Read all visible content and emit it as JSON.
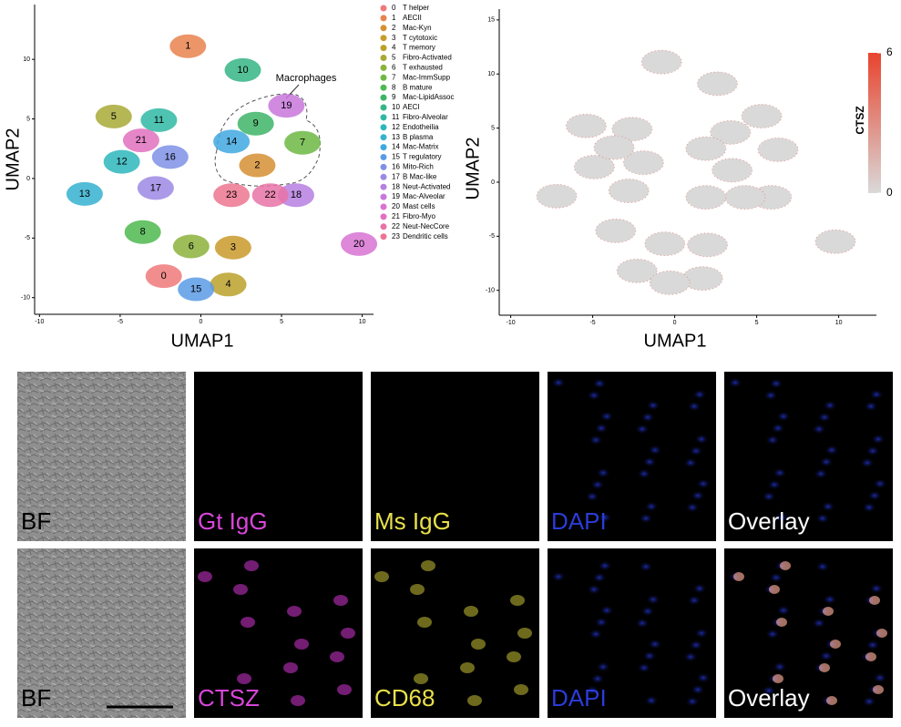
{
  "chart_data": [
    {
      "type": "scatter",
      "xlabel": "UMAP1",
      "ylabel": "UMAP2",
      "xlim": [
        -10.3,
        10.7
      ],
      "ylim": [
        -11.4,
        14.6
      ],
      "xticks": [
        -10,
        -5,
        0,
        5,
        10
      ],
      "yticks": [
        -10,
        -5,
        0,
        5,
        10
      ],
      "annotation": "Macrophages",
      "series": [
        {
          "label": "0",
          "name": "T helper",
          "color": "#F0797A",
          "x": [
            -2.3
          ],
          "values": [
            -8.2
          ]
        },
        {
          "label": "1",
          "name": "AECII",
          "color": "#E8834F",
          "x": [
            -0.8
          ],
          "values": [
            11.1
          ]
        },
        {
          "label": "2",
          "name": "Mac-Kyn",
          "color": "#D58F32",
          "x": [
            3.5
          ],
          "values": [
            1.1
          ]
        },
        {
          "label": "3",
          "name": "T cytotoxic",
          "color": "#C99A2C",
          "x": [
            2.0
          ],
          "values": [
            -5.8
          ]
        },
        {
          "label": "4",
          "name": "T memory",
          "color": "#BBA12B",
          "x": [
            1.7
          ],
          "values": [
            -8.9
          ]
        },
        {
          "label": "5",
          "name": "Fibro-Activated",
          "color": "#A8A936",
          "x": [
            -5.4
          ],
          "values": [
            5.2
          ]
        },
        {
          "label": "6",
          "name": "T exhausted",
          "color": "#8BB23B",
          "x": [
            -0.6
          ],
          "values": [
            -5.7
          ]
        },
        {
          "label": "7",
          "name": "Mac-ImmSupp",
          "color": "#6DB843",
          "x": [
            6.3
          ],
          "values": [
            3.0
          ]
        },
        {
          "label": "8",
          "name": "B mature",
          "color": "#4DB94F",
          "x": [
            -3.6
          ],
          "values": [
            -4.5
          ]
        },
        {
          "label": "9",
          "name": "Mac-LipidAssoc",
          "color": "#3EB467",
          "x": [
            3.4
          ],
          "values": [
            4.6
          ]
        },
        {
          "label": "10",
          "name": "AECI",
          "color": "#35B585",
          "x": [
            2.6
          ],
          "values": [
            9.1
          ]
        },
        {
          "label": "11",
          "name": "Fibro-Alveolar",
          "color": "#2FB8A3",
          "x": [
            -2.6
          ],
          "values": [
            4.9
          ]
        },
        {
          "label": "12",
          "name": "Endotheilia",
          "color": "#2DB6BC",
          "x": [
            -4.9
          ],
          "values": [
            1.4
          ]
        },
        {
          "label": "13",
          "name": "B plasma",
          "color": "#35B2D0",
          "x": [
            -7.2
          ],
          "values": [
            -1.3
          ]
        },
        {
          "label": "14",
          "name": "Mac-Matrix",
          "color": "#3FA8E0",
          "x": [
            1.9
          ],
          "values": [
            3.1
          ]
        },
        {
          "label": "15",
          "name": "T regulatory",
          "color": "#5B9BE6",
          "x": [
            -0.3
          ],
          "values": [
            -9.3
          ]
        },
        {
          "label": "16",
          "name": "Mito-Rich",
          "color": "#7F91E6",
          "x": [
            -1.9
          ],
          "values": [
            1.8
          ]
        },
        {
          "label": "17",
          "name": "B Mac-like",
          "color": "#9C88E4",
          "x": [
            -2.8
          ],
          "values": [
            -0.8
          ]
        },
        {
          "label": "18",
          "name": "Neut-Activated",
          "color": "#B67FE0",
          "x": [
            5.9
          ],
          "values": [
            -1.4
          ]
        },
        {
          "label": "19",
          "name": "Mac-Alveolar",
          "color": "#C877DC",
          "x": [
            5.3
          ],
          "values": [
            6.1
          ]
        },
        {
          "label": "20",
          "name": "Mast cells",
          "color": "#D873D2",
          "x": [
            9.8
          ],
          "values": [
            -5.5
          ]
        },
        {
          "label": "21",
          "name": "Fibro-Myo",
          "color": "#E171BE",
          "x": [
            -3.7
          ],
          "values": [
            3.2
          ]
        },
        {
          "label": "22",
          "name": "Neut-NecCore",
          "color": "#E873A6",
          "x": [
            4.3
          ],
          "values": [
            -1.4
          ]
        },
        {
          "label": "23",
          "name": "Dendritic cells",
          "color": "#EC758F",
          "x": [
            1.9
          ],
          "values": [
            -1.4
          ]
        }
      ]
    },
    {
      "type": "feature",
      "xlabel": "UMAP1",
      "ylabel": "UMAP2",
      "xlim": [
        -10.7,
        12.3
      ],
      "ylim": [
        -12.3,
        16
      ],
      "xticks": [
        -10,
        -5,
        0,
        5,
        10
      ],
      "yticks": [
        -10,
        -5,
        0,
        5,
        10,
        15
      ],
      "colorbar": {
        "label": "CTSZ",
        "lim": [
          0,
          6
        ],
        "ticks": [
          0,
          6
        ],
        "low": "#d9d9d9",
        "high": "#e8442e"
      }
    }
  ],
  "panels": {
    "rows": [
      [
        "BF",
        "Gt IgG",
        "Ms IgG",
        "DAPI",
        "Overlay"
      ],
      [
        "BF",
        "CTSZ",
        "CD68",
        "DAPI",
        "Overlay"
      ]
    ]
  }
}
